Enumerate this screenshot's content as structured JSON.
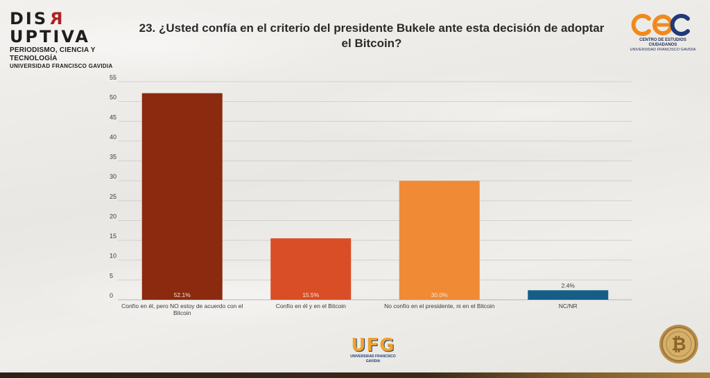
{
  "header": {
    "brand_logo": {
      "prefix": "DIS",
      "reversed_letter": "R",
      "suffix": "UPTIVA",
      "tagline": "PERIODISMO, CIENCIA Y TECNOLOGÍA",
      "university": "UNIVERSIDAD FRANCISCO GAVIDIA"
    },
    "title": "23. ¿Usted confía en el criterio del presidente Bukele ante esta decisión de adoptar el Bitcoin?",
    "partner_logo": {
      "mark": "cec",
      "line1": "CENTRO DE ESTUDIOS CIUDADANOS",
      "line2": "UNIVERSIDAD FRANCISCO GAVIDIA"
    }
  },
  "footer": {
    "ufg_logo": {
      "mark": "UFG",
      "caption": "UNIVERSIDAD FRANCISCO GAVIDIA"
    },
    "coin_icon": "bitcoin-coin-icon"
  },
  "colors": {
    "bar1": "#8b2a0e",
    "bar2": "#d94e26",
    "bar3": "#f08a34",
    "bar4": "#155e87",
    "grid": "#d2d0cc",
    "text": "#3a3a3a",
    "label_light": "#f5e6dc"
  },
  "chart_data": {
    "type": "bar",
    "title": "23. ¿Usted confía en el criterio del presidente Bukele ante esta decisión de adoptar el Bitcoin?",
    "categories": [
      [
        "Confío en él, pero NO estoy de acuerdo con el",
        "Bitcoin"
      ],
      [
        "Confío en él y en el Bitcoin"
      ],
      [
        "No confío en el presidente, ni en el Bitcoin"
      ],
      [
        "NC/NR"
      ]
    ],
    "values": [
      52.1,
      15.5,
      30.0,
      2.4
    ],
    "data_labels": [
      "52.1%",
      "15.5%",
      "30.0%",
      "2.4%"
    ],
    "yticks": [
      0,
      5,
      10,
      15,
      20,
      25,
      30,
      35,
      40,
      45,
      50,
      55
    ],
    "ylim": [
      0,
      55
    ],
    "xlabel": "",
    "ylabel": "",
    "grid": true,
    "legend": "none"
  }
}
